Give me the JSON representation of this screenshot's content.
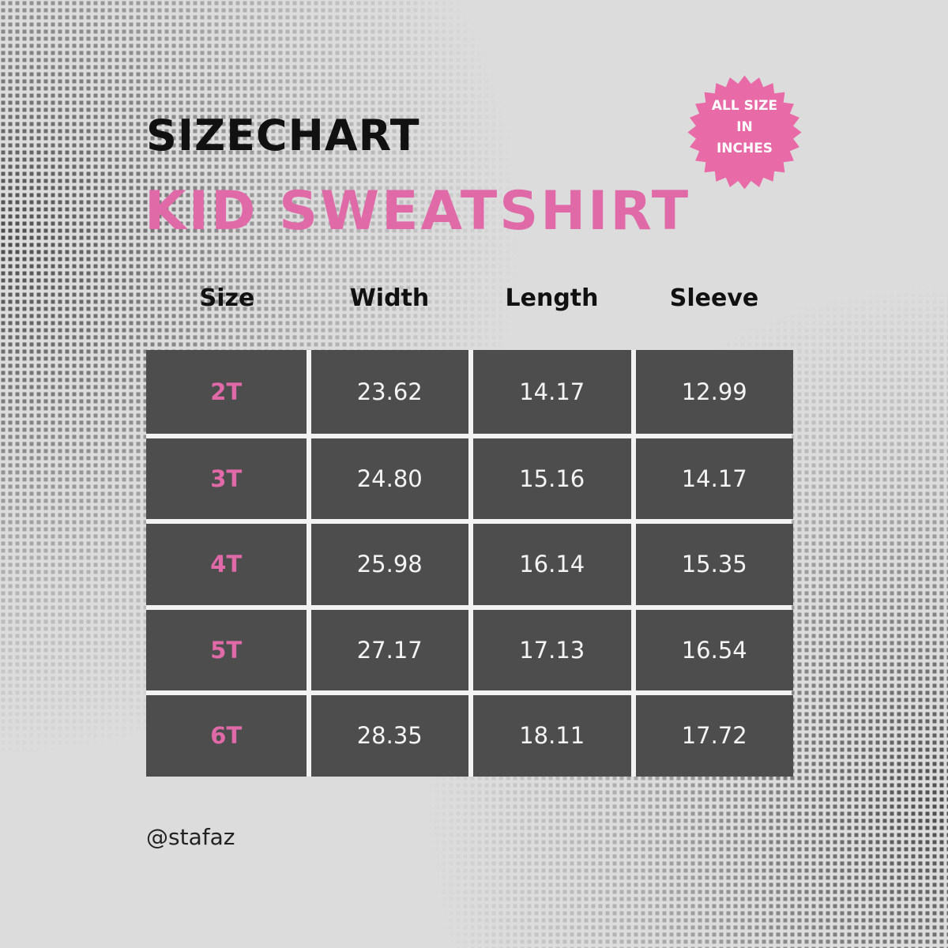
{
  "header": {
    "title": "SIZECHART",
    "subtitle": "KID SWEATSHIRT"
  },
  "badge": {
    "lines": [
      "ALL SIZE",
      "IN",
      "INCHES"
    ]
  },
  "table": {
    "columns": [
      "Size",
      "Width",
      "Length",
      "Sleeve"
    ],
    "rows": [
      [
        "2T",
        "23.62",
        "14.17",
        "12.99"
      ],
      [
        "3T",
        "24.80",
        "15.16",
        "14.17"
      ],
      [
        "4T",
        "25.98",
        "16.14",
        "15.35"
      ],
      [
        "5T",
        "27.17",
        "17.13",
        "16.54"
      ],
      [
        "6T",
        "28.35",
        "18.11",
        "17.72"
      ]
    ]
  },
  "footer": {
    "handle": "@stafaz"
  }
}
